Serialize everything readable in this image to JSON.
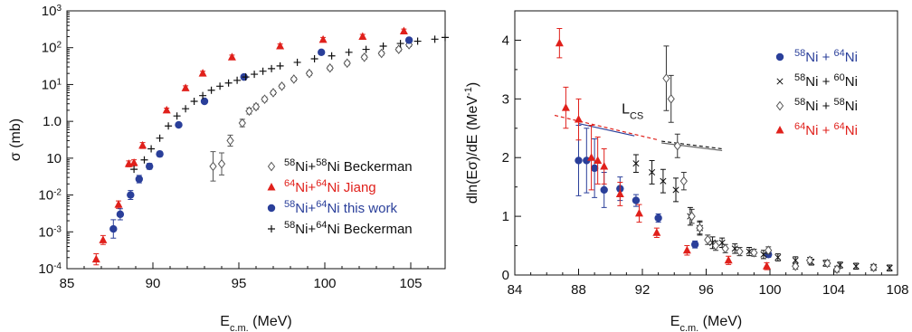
{
  "colors": {
    "red": "#e0201b",
    "blue": "#2a3f9a",
    "black": "#111111",
    "gray": "#555555",
    "red_dashed": "#e0201b",
    "blue_line": "#2a3f9a"
  },
  "chart_data": [
    {
      "type": "scatter",
      "yscale": "log",
      "xlabel": "E",
      "xlabel_sub": "c.m.",
      "xlabel_unit": " (MeV)",
      "ylabel": "σ (mb)",
      "xlim": [
        85,
        107
      ],
      "ylim": [
        0.0001,
        1000
      ],
      "x_ticks": [
        85,
        90,
        95,
        100,
        105
      ],
      "y_ticks": [
        {
          "value": 0.0001,
          "base": "10",
          "exp": "-4"
        },
        {
          "value": 0.001,
          "base": "10",
          "exp": "-3"
        },
        {
          "value": 0.01,
          "base": "10",
          "exp": "-2"
        },
        {
          "value": 0.1,
          "base": "10",
          "exp": ""
        },
        {
          "value": 1,
          "base": "1.0",
          "exp": ""
        },
        {
          "value": 10,
          "base": "10",
          "exp": "1"
        },
        {
          "value": 100,
          "base": "10",
          "exp": "2"
        },
        {
          "value": 1000,
          "base": "10",
          "exp": "3"
        }
      ],
      "legend_position": "bottom-right",
      "series": [
        {
          "name": "58Ni+58Ni Beckerman",
          "legend_parts": [
            {
              "t": "58",
              "sup": true
            },
            {
              "t": "Ni+",
              "sup": false
            },
            {
              "t": "58",
              "sup": true
            },
            {
              "t": "Ni Beckerman",
              "sup": false
            }
          ],
          "marker": "diamond",
          "color": "#555555",
          "x": [
            93.5,
            94.0,
            94.5,
            95.2,
            95.6,
            96.0,
            96.5,
            97.0,
            97.5,
            98.2,
            99.1,
            100.3,
            101.3,
            102.3,
            103.3,
            104.3,
            104.9
          ],
          "y": [
            0.06,
            0.07,
            0.3,
            0.9,
            1.9,
            2.5,
            4.0,
            6.0,
            9.0,
            14,
            20,
            28,
            38,
            55,
            70,
            90,
            120
          ],
          "err": [
            0.4,
            0.3,
            0.15,
            0.1,
            0.08,
            0.07,
            0.06,
            0.05,
            0.05,
            0.05,
            0.05,
            0.05,
            0.05,
            0.05,
            0.05,
            0.05,
            0.05
          ]
        },
        {
          "name": "64Ni+64Ni Jiang",
          "legend_parts": [
            {
              "t": "64",
              "sup": true
            },
            {
              "t": "Ni+",
              "sup": false
            },
            {
              "t": "64",
              "sup": true
            },
            {
              "t": "Ni Jiang",
              "sup": false
            }
          ],
          "marker": "triangle",
          "color": "#e0201b",
          "x": [
            86.7,
            87.1,
            88.0,
            88.6,
            88.9,
            89.4,
            90.8,
            91.9,
            92.9,
            94.6,
            97.4,
            99.9,
            102.2,
            104.6
          ],
          "y": [
            0.00018,
            0.0006,
            0.0055,
            0.07,
            0.075,
            0.22,
            2.0,
            8.0,
            20,
            55,
            110,
            165,
            200,
            280
          ],
          "err": [
            0.15,
            0.12,
            0.1,
            0.08,
            0.08,
            0.08,
            0.06,
            0.06,
            0.06,
            0.06,
            0.06,
            0.06,
            0.06,
            0.06
          ]
        },
        {
          "name": "58Ni+64Ni this work",
          "legend_parts": [
            {
              "t": "58",
              "sup": true
            },
            {
              "t": "Ni+",
              "sup": false
            },
            {
              "t": "64",
              "sup": true
            },
            {
              "t": "Ni this work",
              "sup": false
            }
          ],
          "marker": "circle",
          "color": "#2a3f9a",
          "x": [
            87.7,
            88.1,
            88.7,
            89.2,
            89.8,
            90.4,
            91.5,
            93.0,
            95.3,
            99.8,
            104.9
          ],
          "y": [
            0.0012,
            0.003,
            0.01,
            0.027,
            0.06,
            0.13,
            0.8,
            3.5,
            16,
            75,
            160
          ],
          "err": [
            0.25,
            0.15,
            0.12,
            0.1,
            0.08,
            0.07,
            0.06,
            0.05,
            0.05,
            0.05,
            0.05
          ]
        },
        {
          "name": "58Ni+64Ni Beckerman",
          "legend_parts": [
            {
              "t": "58",
              "sup": true
            },
            {
              "t": "Ni+",
              "sup": false
            },
            {
              "t": "64",
              "sup": true
            },
            {
              "t": "Ni Beckerman",
              "sup": false
            }
          ],
          "marker": "plus",
          "color": "#111111",
          "x": [
            88.9,
            89.5,
            89.9,
            90.4,
            90.9,
            91.4,
            91.9,
            92.4,
            92.9,
            93.4,
            93.9,
            94.4,
            94.9,
            95.4,
            95.9,
            96.4,
            96.9,
            97.4,
            98.4,
            99.4,
            100.4,
            101.4,
            102.4,
            103.4,
            104.4,
            105.4,
            106.4,
            107.0
          ],
          "y": [
            0.05,
            0.09,
            0.18,
            0.35,
            0.75,
            1.4,
            2.2,
            3.5,
            5.0,
            7.0,
            9.0,
            11,
            13,
            16,
            19,
            23,
            27,
            32,
            40,
            50,
            60,
            75,
            90,
            110,
            130,
            150,
            170,
            190
          ]
        }
      ]
    },
    {
      "type": "scatter",
      "xlabel": "E",
      "xlabel_sub": "c.m.",
      "xlabel_unit": " (MeV)",
      "ylabel": "dln(Eσ)/dE (MeV",
      "ylabel_sup": "-1",
      "ylabel_end": ")",
      "xlim": [
        84,
        108
      ],
      "ylim": [
        0,
        4.5
      ],
      "x_ticks": [
        84,
        88,
        92,
        96,
        100,
        104,
        108
      ],
      "y_ticks": [
        0,
        1,
        2,
        3,
        4
      ],
      "annotation": {
        "text": "L",
        "sub": "CS",
        "x": 90.7,
        "y": 2.75
      },
      "legend_position": "top-right",
      "series": [
        {
          "name": "58Ni + 64Ni",
          "legend_parts": [
            {
              "t": "58",
              "sup": true
            },
            {
              "t": "Ni + ",
              "sup": false
            },
            {
              "t": "64",
              "sup": true
            },
            {
              "t": "Ni",
              "sup": false
            }
          ],
          "marker": "circle",
          "color": "#2a3f9a",
          "legend_color": "#2a3f9a",
          "x": [
            88.0,
            88.5,
            89.0,
            89.6,
            90.6,
            91.6,
            93.0,
            95.3,
            99.9
          ],
          "y": [
            1.95,
            1.95,
            1.82,
            1.45,
            1.47,
            1.27,
            0.97,
            0.52,
            0.35
          ],
          "err": [
            0.6,
            0.55,
            0.5,
            0.3,
            0.2,
            0.1,
            0.07,
            0.06,
            0.05
          ]
        },
        {
          "name": "58Ni + 60Ni",
          "legend_parts": [
            {
              "t": "58",
              "sup": true
            },
            {
              "t": "Ni + ",
              "sup": false
            },
            {
              "t": "60",
              "sup": true
            },
            {
              "t": "Ni",
              "sup": false
            }
          ],
          "marker": "cross",
          "color": "#111111",
          "legend_color": "#111111",
          "x": [
            91.6,
            92.6,
            93.3,
            94.1,
            95.0,
            95.6,
            96.4,
            97.0,
            97.8,
            98.7,
            99.6,
            100.5,
            101.6,
            102.6,
            103.5,
            104.4,
            105.4,
            106.5,
            107.5
          ],
          "y": [
            1.9,
            1.75,
            1.6,
            1.45,
            1.0,
            0.8,
            0.55,
            0.55,
            0.45,
            0.4,
            0.35,
            0.3,
            0.25,
            0.22,
            0.2,
            0.17,
            0.15,
            0.13,
            0.12
          ],
          "err": [
            0.15,
            0.2,
            0.2,
            0.2,
            0.15,
            0.12,
            0.1,
            0.08,
            0.08,
            0.07,
            0.07,
            0.06,
            0.06,
            0.05,
            0.05,
            0.05,
            0.05,
            0.05,
            0.05
          ]
        },
        {
          "name": "58Ni + 58Ni",
          "legend_parts": [
            {
              "t": "58",
              "sup": true
            },
            {
              "t": "Ni + ",
              "sup": false
            },
            {
              "t": "58",
              "sup": true
            },
            {
              "t": "Ni",
              "sup": false
            }
          ],
          "marker": "diamond",
          "color": "#555555",
          "legend_color": "#111111",
          "x": [
            93.5,
            93.8,
            94.2,
            94.6,
            95.1,
            95.6,
            96.1,
            96.6,
            97.2,
            98.1,
            99.0,
            99.9,
            101.6,
            102.5,
            103.6,
            104.2,
            106.5
          ],
          "y": [
            3.35,
            3.0,
            2.2,
            1.6,
            1.0,
            0.8,
            0.6,
            0.5,
            0.45,
            0.4,
            0.38,
            0.42,
            0.15,
            0.25,
            0.2,
            0.1,
            0.13
          ],
          "err": [
            0.55,
            0.4,
            0.2,
            0.15,
            0.12,
            0.1,
            0.08,
            0.08,
            0.07,
            0.07,
            0.06,
            0.06,
            0.05,
            0.05,
            0.05,
            0.05,
            0.05
          ]
        },
        {
          "name": "64Ni + 64Ni",
          "legend_parts": [
            {
              "t": "64",
              "sup": true
            },
            {
              "t": "Ni + ",
              "sup": false
            },
            {
              "t": "64",
              "sup": true
            },
            {
              "t": "Ni",
              "sup": false
            }
          ],
          "marker": "triangle",
          "color": "#e0201b",
          "legend_color": "#e0201b",
          "x": [
            86.8,
            87.2,
            88.0,
            88.8,
            89.2,
            89.6,
            90.6,
            91.8,
            92.9,
            94.8,
            97.4,
            99.8
          ],
          "y": [
            3.95,
            2.85,
            2.65,
            2.0,
            1.95,
            1.85,
            1.38,
            1.05,
            0.72,
            0.42,
            0.25,
            0.15
          ],
          "err": [
            0.25,
            0.35,
            0.35,
            0.55,
            0.4,
            0.3,
            0.2,
            0.15,
            0.08,
            0.08,
            0.07,
            0.06
          ]
        }
      ],
      "lines": [
        {
          "name": "lcs-blue",
          "x": [
            88.0,
            91.5
          ],
          "y": [
            2.58,
            2.37
          ],
          "color": "#2a3f9a",
          "dash": ""
        },
        {
          "name": "lcs-red-dashed",
          "x": [
            86.5,
            93.0
          ],
          "y": [
            2.72,
            2.3
          ],
          "color": "#e0201b",
          "dash": "4,3"
        },
        {
          "name": "lcs-black-dashed",
          "x": [
            93.2,
            97.0
          ],
          "y": [
            2.28,
            2.15
          ],
          "color": "#111111",
          "dash": "4,3"
        },
        {
          "name": "lcs-gray",
          "x": [
            93.2,
            97.0
          ],
          "y": [
            2.25,
            2.12
          ],
          "color": "#666666",
          "dash": ""
        }
      ]
    }
  ]
}
